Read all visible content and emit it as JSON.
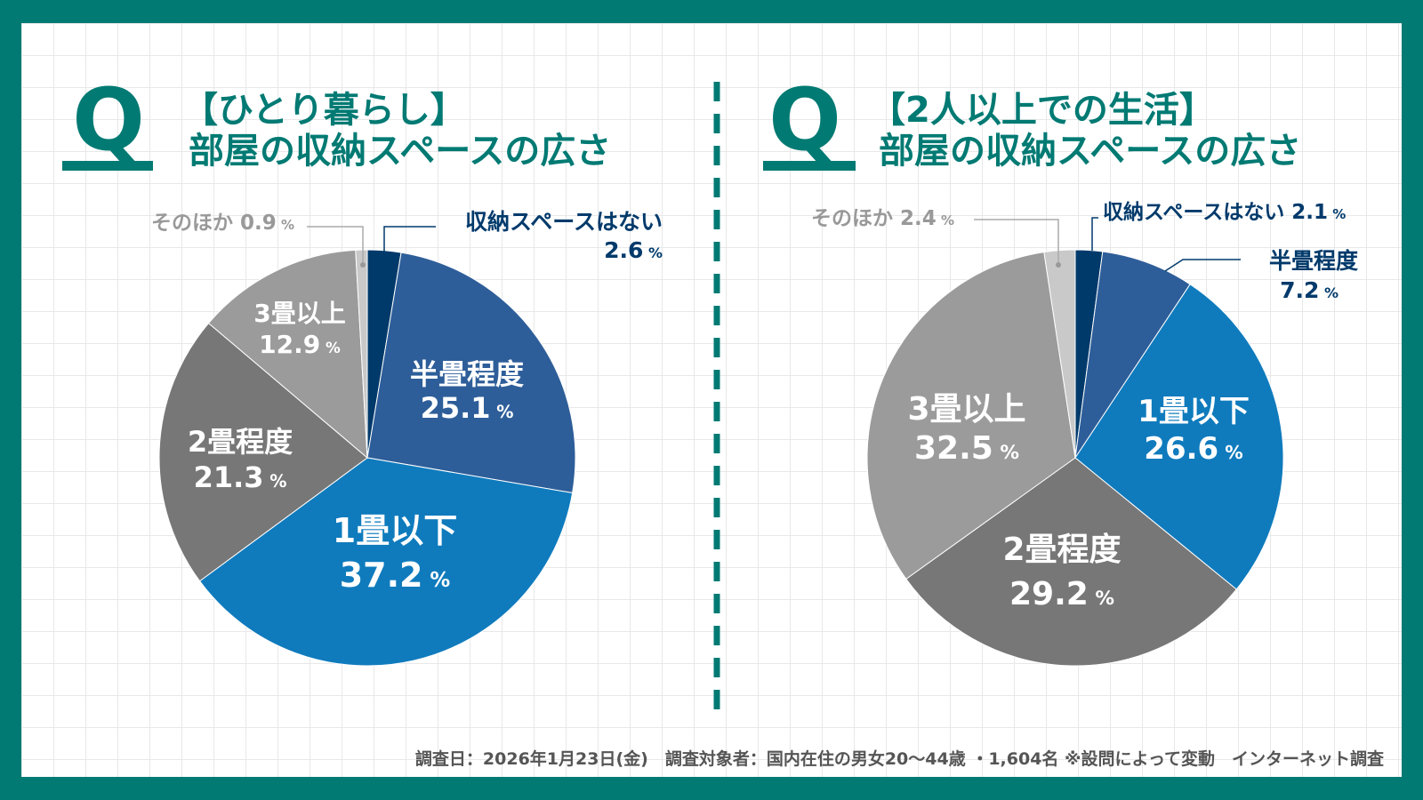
{
  "colors": {
    "frame": "#007a73",
    "title": "#007a73",
    "navy": "#003a6b",
    "mid_blue": "#2e5e99",
    "blue": "#0f7bbd",
    "dark_gray": "#777777",
    "gray": "#9b9b9b",
    "light_gray": "#c9c9c9"
  },
  "icon": "q-letter-icon",
  "left_title": {
    "line1": "【ひとり暮らし】",
    "line2": "部屋の収納スペースの広さ"
  },
  "right_title": {
    "line1": "【2人以上での生活】",
    "line2": "部屋の収納スペースの広さ"
  },
  "footer": "調査日：2026年1月23日(金)　調査対象者：国内在住の男女20〜44歳 ・1,604名 ※設問によって変動　インターネット調査",
  "chart_data": [
    {
      "type": "pie",
      "title": "【ひとり暮らし】部屋の収納スペースの広さ",
      "unit": "%",
      "start": "top",
      "direction": "clockwise",
      "slices": [
        {
          "label": "収納スペースはない",
          "value": 2.6,
          "color": "#003a6b"
        },
        {
          "label": "半畳程度",
          "value": 25.1,
          "color": "#2e5e99"
        },
        {
          "label": "1畳以下",
          "value": 37.2,
          "color": "#0f7bbd"
        },
        {
          "label": "2畳程度",
          "value": 21.3,
          "color": "#777777"
        },
        {
          "label": "3畳以上",
          "value": 12.9,
          "color": "#9b9b9b"
        },
        {
          "label": "そのほか",
          "value": 0.9,
          "color": "#c9c9c9"
        }
      ]
    },
    {
      "type": "pie",
      "title": "【2人以上での生活】部屋の収納スペースの広さ",
      "unit": "%",
      "start": "top",
      "direction": "clockwise",
      "slices": [
        {
          "label": "収納スペースはない",
          "value": 2.1,
          "color": "#003a6b"
        },
        {
          "label": "半畳程度",
          "value": 7.2,
          "color": "#2e5e99"
        },
        {
          "label": "1畳以下",
          "value": 26.6,
          "color": "#0f7bbd"
        },
        {
          "label": "2畳程度",
          "value": 29.2,
          "color": "#777777"
        },
        {
          "label": "3畳以上",
          "value": 32.5,
          "color": "#9b9b9b"
        },
        {
          "label": "そのほか",
          "value": 2.4,
          "color": "#c9c9c9"
        }
      ]
    }
  ]
}
